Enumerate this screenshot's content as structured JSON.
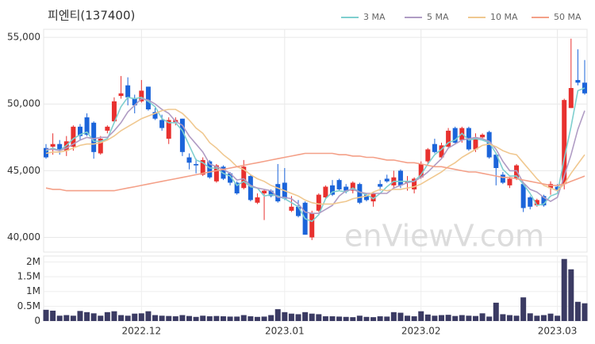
{
  "chart_data": [
    {
      "type": "candlestick",
      "title": "피엔티(137400)",
      "watermark": "enViewV.com",
      "ylim": [
        38900,
        55600
      ],
      "yticks": [
        {
          "value": 40000,
          "label": "40,000"
        },
        {
          "value": 45000,
          "label": "45,000"
        },
        {
          "value": 50000,
          "label": "50,000"
        },
        {
          "value": 55000,
          "label": "55,000"
        }
      ],
      "grid": true,
      "legend": "top-right",
      "up_color": "#e8312f",
      "down_color": "#1b64da",
      "open": [
        46700,
        46800,
        47000,
        46500,
        46800,
        48300,
        49000,
        48600,
        46300,
        48000,
        48700,
        50600,
        51400,
        50400,
        50200,
        51300,
        49400,
        48800,
        47400,
        48600,
        48900,
        46000,
        45500,
        44700,
        45700,
        44200,
        45300,
        44800,
        44100,
        43700,
        44600,
        42600,
        43300,
        43500,
        44000,
        44100,
        42000,
        42300,
        42600,
        40000,
        42000,
        43000,
        43900,
        44300,
        43800,
        43500,
        44000,
        43200,
        42700,
        44000,
        44400,
        43900,
        45000,
        44100,
        43600,
        44500,
        45700,
        47000,
        46000,
        46800,
        48200,
        47300,
        48200,
        46600,
        47500,
        47900,
        46200,
        44700,
        43900,
        44400,
        44000,
        43000,
        42400,
        43100,
        43700,
        43800,
        44000,
        49700,
        51800,
        51600
      ],
      "high": [
        47000,
        47800,
        47300,
        47600,
        48400,
        48500,
        49300,
        48700,
        47600,
        48400,
        50500,
        52100,
        52000,
        50700,
        51800,
        51300,
        49700,
        49200,
        49000,
        49000,
        48900,
        46300,
        45900,
        46000,
        45800,
        45500,
        45400,
        44900,
        44200,
        45800,
        44700,
        43300,
        43600,
        43600,
        45500,
        45200,
        43100,
        42800,
        42700,
        42000,
        43300,
        43900,
        44300,
        44400,
        44000,
        44200,
        44100,
        43300,
        43400,
        44300,
        44700,
        45000,
        45100,
        44600,
        44500,
        45700,
        46700,
        47400,
        47100,
        48200,
        48300,
        48300,
        48300,
        47800,
        47800,
        48000,
        46300,
        44900,
        44500,
        45500,
        44100,
        43100,
        42900,
        43200,
        44200,
        44000,
        50400,
        54900,
        54100,
        53300
      ],
      "low": [
        45900,
        46200,
        46200,
        46100,
        46500,
        47300,
        47600,
        45900,
        46200,
        47800,
        48600,
        50400,
        49900,
        49300,
        50100,
        49500,
        48800,
        48000,
        47000,
        48400,
        46100,
        45100,
        44800,
        44600,
        44400,
        44100,
        44300,
        43900,
        43200,
        43600,
        42700,
        42500,
        41300,
        43000,
        42600,
        42800,
        41900,
        41500,
        40200,
        39800,
        41900,
        42900,
        43100,
        43500,
        43300,
        43300,
        42500,
        42700,
        42300,
        43500,
        44100,
        43700,
        43700,
        43500,
        43300,
        44400,
        45500,
        46300,
        45900,
        46700,
        47000,
        47100,
        46500,
        46400,
        47400,
        45900,
        43900,
        44000,
        43700,
        44300,
        41900,
        42100,
        42300,
        42300,
        43200,
        43300,
        43600,
        49700,
        51400,
        50700
      ],
      "close": [
        46000,
        47000,
        46600,
        47200,
        48300,
        47600,
        47700,
        46400,
        47400,
        48300,
        50200,
        50800,
        50500,
        49900,
        51000,
        49600,
        48900,
        48200,
        48800,
        48800,
        46400,
        45600,
        45400,
        45800,
        44500,
        45400,
        44400,
        44100,
        43300,
        45300,
        42800,
        43000,
        43500,
        43100,
        42700,
        42900,
        42300,
        41600,
        40200,
        41800,
        43200,
        43800,
        43200,
        43600,
        43500,
        44100,
        42600,
        42800,
        43300,
        43800,
        44200,
        44500,
        43900,
        44200,
        44400,
        45500,
        46600,
        46400,
        46900,
        48000,
        47100,
        48200,
        46600,
        47500,
        47700,
        46000,
        45200,
        44100,
        44400,
        45400,
        42200,
        42300,
        42800,
        42400,
        44000,
        43500,
        50300,
        51200,
        51600,
        50800
      ],
      "series": [
        {
          "name": "3 MA",
          "color": "#7fcfcf",
          "values": [
            46500,
            46700,
            46500,
            46900,
            47400,
            47700,
            47900,
            47200,
            47200,
            47400,
            48600,
            49800,
            50500,
            50400,
            50500,
            50200,
            49800,
            48900,
            48600,
            48600,
            48000,
            46900,
            45800,
            45600,
            45200,
            45200,
            44800,
            44600,
            43900,
            44200,
            43800,
            43700,
            43100,
            43200,
            43100,
            42900,
            42600,
            42300,
            41400,
            41200,
            41700,
            42900,
            43400,
            43500,
            43400,
            43700,
            43400,
            43200,
            42900,
            43300,
            43800,
            44200,
            44200,
            44200,
            44200,
            44700,
            45500,
            46200,
            46600,
            47100,
            47300,
            47800,
            47300,
            47400,
            47300,
            47100,
            46300,
            45100,
            44600,
            44600,
            44000,
            43300,
            42400,
            42500,
            43100,
            43300,
            45900,
            48300,
            51000,
            51200
          ]
        },
        {
          "name": "5 MA",
          "color": "#b09cc4",
          "values": [
            46600,
            46600,
            46500,
            46700,
            47000,
            47300,
            47500,
            47400,
            47500,
            47500,
            48000,
            48600,
            49400,
            49900,
            50400,
            50300,
            50000,
            49600,
            49300,
            48700,
            48400,
            47600,
            47000,
            46400,
            45500,
            45300,
            45100,
            44800,
            44300,
            44400,
            43900,
            43700,
            43600,
            43500,
            43000,
            43000,
            42900,
            42500,
            41900,
            41800,
            41800,
            42100,
            42400,
            43100,
            43500,
            43600,
            43400,
            43300,
            43300,
            43300,
            43300,
            43700,
            43900,
            44100,
            44200,
            44500,
            44900,
            45400,
            45900,
            46700,
            47000,
            47300,
            47400,
            47500,
            47400,
            47200,
            46600,
            45700,
            45000,
            45000,
            44100,
            43600,
            43400,
            43000,
            42700,
            43000,
            44600,
            46200,
            48100,
            49500
          ]
        },
        {
          "name": "10 MA",
          "color": "#f0c890",
          "values": [
            46300,
            46400,
            46400,
            46500,
            46700,
            46900,
            47000,
            47000,
            47100,
            47300,
            47600,
            48000,
            48300,
            48600,
            48900,
            49100,
            49300,
            49500,
            49600,
            49600,
            49300,
            48800,
            48200,
            47800,
            47100,
            46700,
            46200,
            45800,
            45300,
            45100,
            44700,
            44400,
            44200,
            43900,
            43700,
            43500,
            43300,
            43100,
            42800,
            42600,
            42500,
            42500,
            42500,
            42600,
            42700,
            42900,
            43000,
            43100,
            43400,
            43600,
            43500,
            43600,
            43600,
            43700,
            43800,
            44000,
            44300,
            44600,
            44900,
            45300,
            45600,
            46000,
            46300,
            46600,
            46900,
            47000,
            46800,
            46500,
            46300,
            46200,
            45600,
            45000,
            44400,
            43900,
            43700,
            43500,
            44000,
            44800,
            45500,
            46200
          ]
        },
        {
          "name": "50 MA",
          "color": "#f4a088",
          "values": [
            43700,
            43600,
            43600,
            43500,
            43500,
            43500,
            43500,
            43500,
            43500,
            43500,
            43500,
            43600,
            43700,
            43800,
            43900,
            44000,
            44100,
            44200,
            44300,
            44400,
            44500,
            44600,
            44700,
            44800,
            44900,
            45000,
            45100,
            45200,
            45300,
            45400,
            45500,
            45600,
            45700,
            45800,
            45900,
            46000,
            46100,
            46200,
            46300,
            46300,
            46300,
            46300,
            46300,
            46200,
            46200,
            46100,
            46100,
            46000,
            46000,
            45900,
            45800,
            45800,
            45700,
            45600,
            45600,
            45500,
            45400,
            45300,
            45300,
            45200,
            45100,
            45000,
            44900,
            44900,
            44800,
            44700,
            44600,
            44500,
            44500,
            44400,
            44300,
            44200,
            44100,
            44000,
            43900,
            43900,
            44000,
            44200,
            44400,
            44600
          ]
        }
      ]
    },
    {
      "type": "bar",
      "color": "#3b3b63",
      "categories": [
        null,
        null,
        null,
        null,
        null,
        null,
        null,
        null,
        null,
        null,
        null,
        null,
        null,
        null,
        "2022.12",
        null,
        null,
        null,
        null,
        null,
        null,
        null,
        null,
        null,
        null,
        null,
        null,
        null,
        null,
        null,
        null,
        null,
        null,
        null,
        null,
        "2023.01",
        null,
        null,
        null,
        null,
        null,
        null,
        null,
        null,
        null,
        null,
        null,
        null,
        null,
        null,
        null,
        null,
        null,
        null,
        null,
        "2023.02",
        null,
        null,
        null,
        null,
        null,
        null,
        null,
        null,
        null,
        null,
        null,
        null,
        null,
        null,
        null,
        null,
        null,
        null,
        null,
        "2023.03",
        null,
        null,
        null,
        null
      ],
      "values": [
        380000,
        350000,
        180000,
        200000,
        180000,
        340000,
        300000,
        260000,
        180000,
        300000,
        330000,
        200000,
        180000,
        250000,
        260000,
        330000,
        200000,
        180000,
        170000,
        160000,
        200000,
        170000,
        140000,
        180000,
        160000,
        170000,
        160000,
        150000,
        150000,
        200000,
        160000,
        140000,
        150000,
        200000,
        400000,
        300000,
        250000,
        230000,
        300000,
        250000,
        230000,
        160000,
        160000,
        150000,
        140000,
        130000,
        180000,
        140000,
        130000,
        160000,
        150000,
        300000,
        280000,
        180000,
        160000,
        330000,
        220000,
        180000,
        200000,
        210000,
        170000,
        200000,
        180000,
        170000,
        260000,
        150000,
        620000,
        230000,
        200000,
        180000,
        800000,
        260000,
        180000,
        200000,
        250000,
        180000,
        2100000,
        1750000,
        650000,
        600000
      ],
      "ylim": [
        0,
        2200000
      ],
      "yticks": [
        0,
        {
          "value": 500000,
          "label": "0.5M"
        },
        {
          "value": 1000000,
          "label": "1M"
        },
        {
          "value": 1500000,
          "label": "1.5M"
        },
        {
          "value": 2000000,
          "label": "2M"
        }
      ]
    }
  ]
}
